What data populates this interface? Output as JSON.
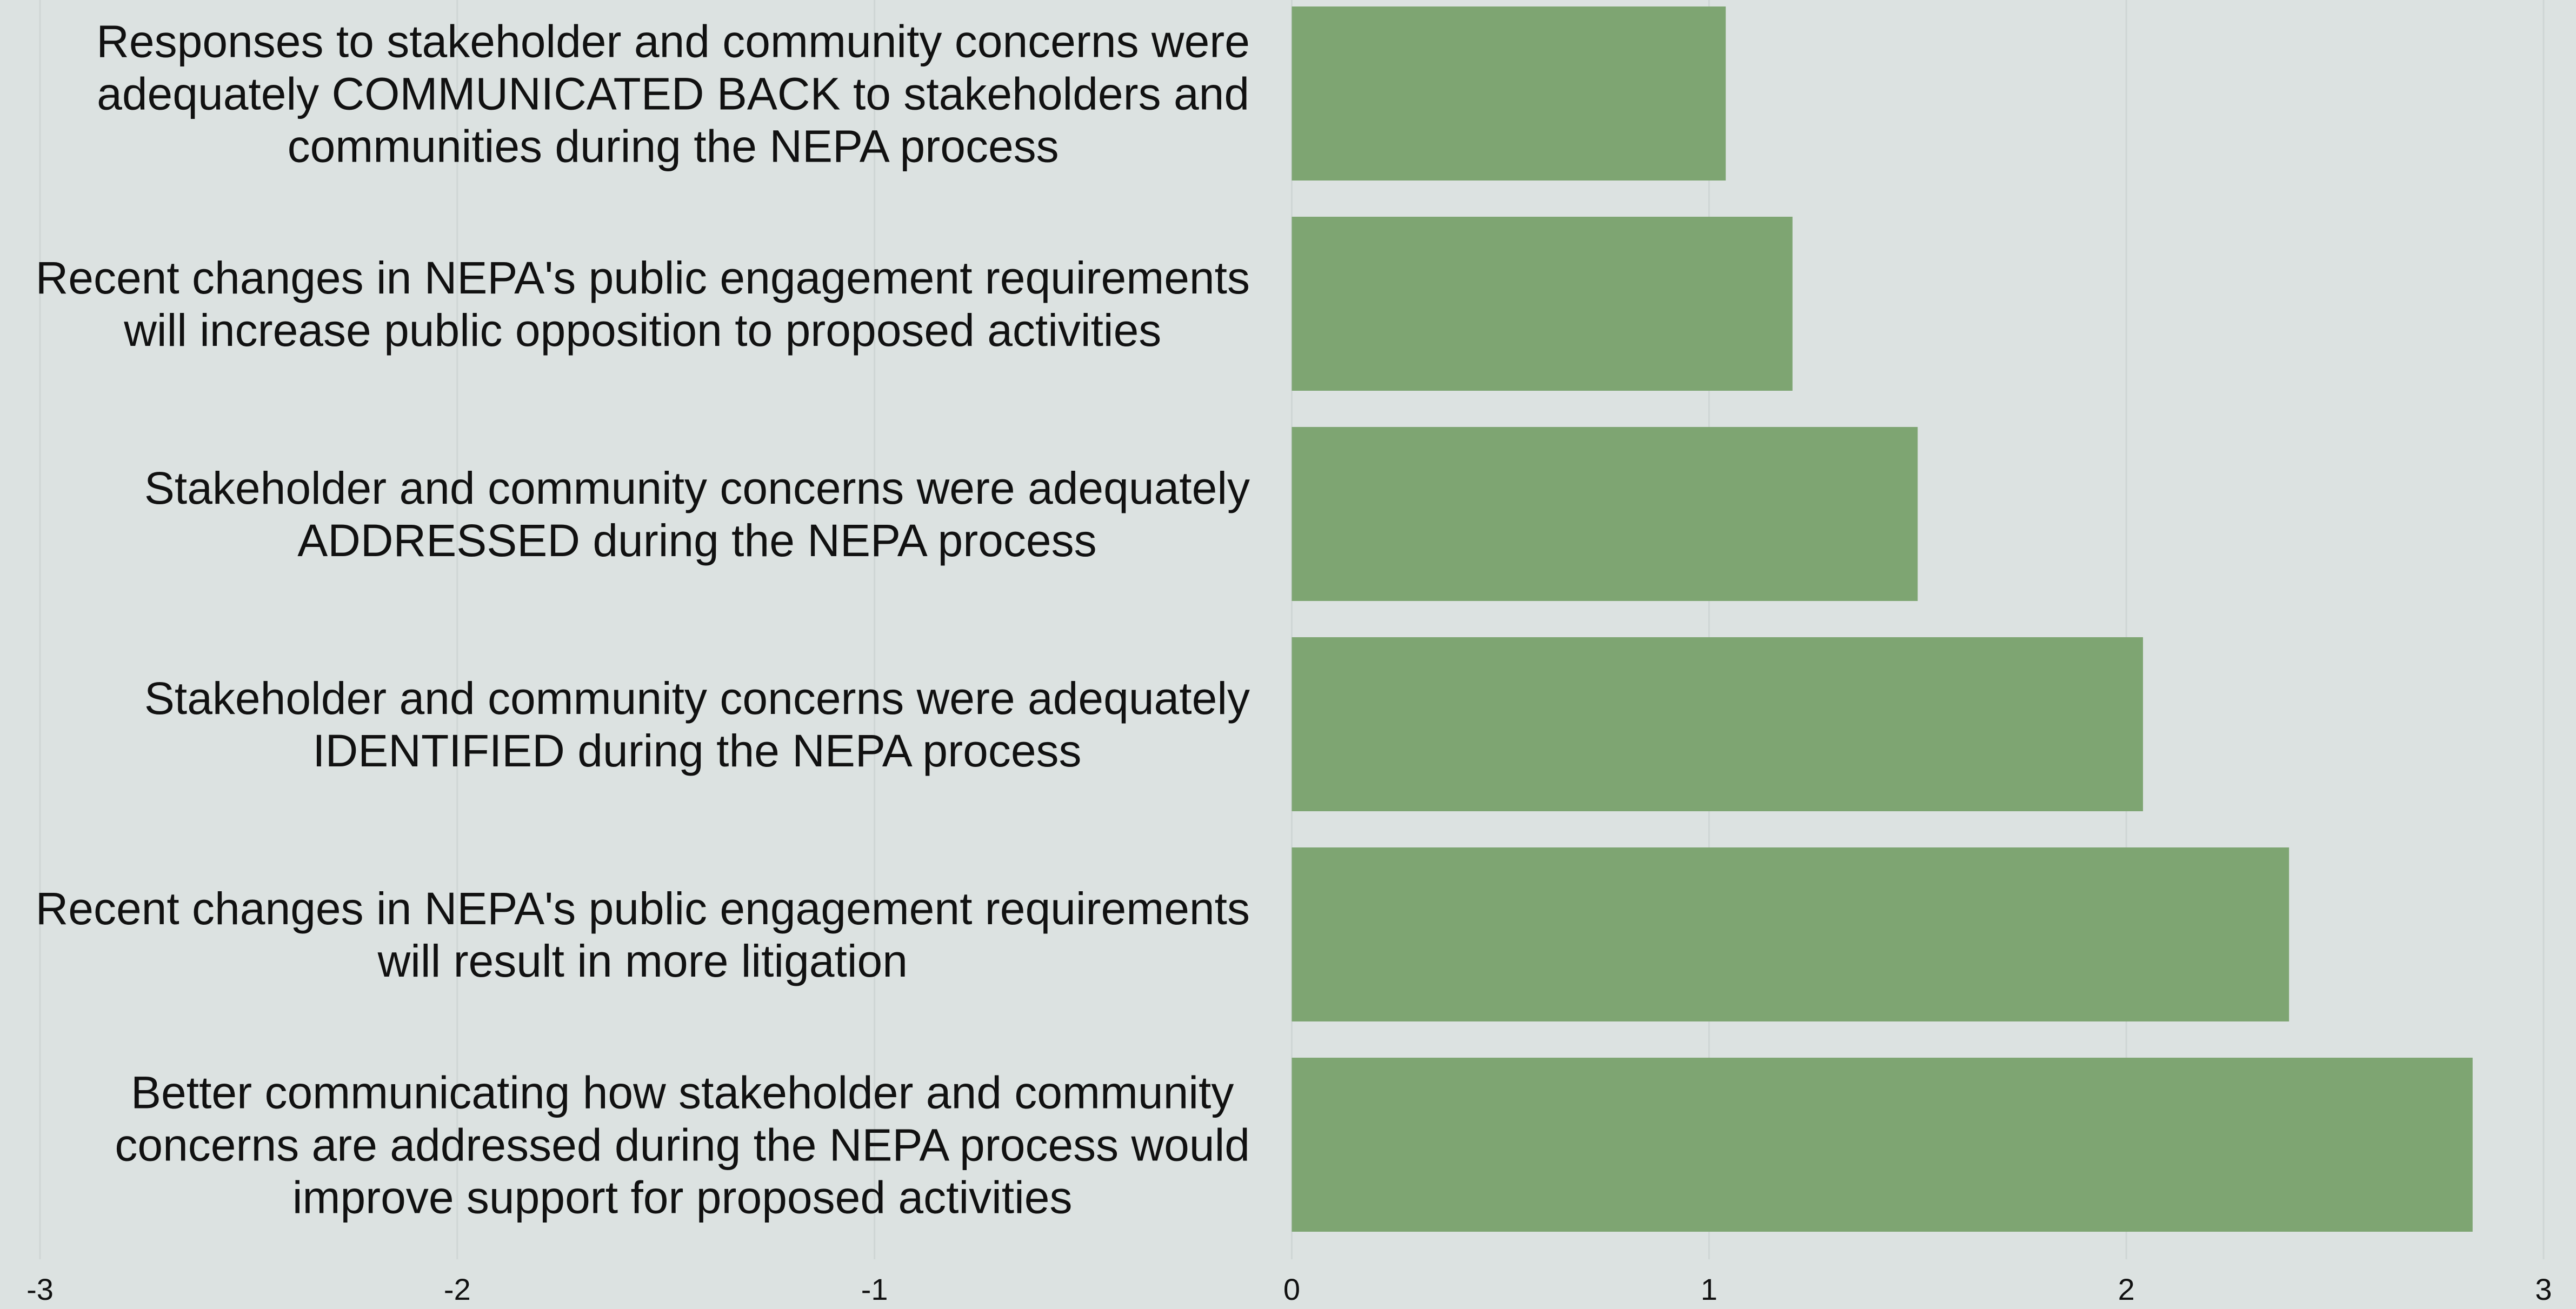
{
  "chart_data": {
    "type": "bar",
    "orientation": "horizontal",
    "categories": [
      "Responses to stakeholder and community concerns were adequately COMMUNICATED BACK to stakeholders and communities during the NEPA process",
      "Recent changes in NEPA's public engagement requirements will increase public opposition to proposed activities",
      "Stakeholder and community concerns were adequately ADDRESSED during the NEPA process",
      "Stakeholder and community concerns were adequately IDENTIFIED during the NEPA process",
      "Recent changes in NEPA's public engagement requirements will result in more litigation",
      "Better communicating how stakeholder and community concerns are addressed during the NEPA process would improve support for proposed activities"
    ],
    "category_lines": [
      [
        "Responses to stakeholder and community concerns were",
        "adequately COMMUNICATED BACK to stakeholders and",
        "communities during the NEPA process"
      ],
      [
        "Recent changes in NEPA's public engagement requirements",
        "will increase public opposition to proposed activities"
      ],
      [
        "Stakeholder and community concerns were adequately",
        "ADDRESSED during the NEPA process"
      ],
      [
        "Stakeholder and community concerns were adequately",
        "IDENTIFIED during the NEPA process"
      ],
      [
        "Recent changes in NEPA's public engagement requirements",
        "will result in more litigation"
      ],
      [
        "Better communicating how stakeholder and community",
        "concerns are addressed during the NEPA process would",
        "improve support for proposed activities"
      ]
    ],
    "values": [
      1.04,
      1.2,
      1.5,
      2.04,
      2.39,
      2.83
    ],
    "xlim": [
      -3,
      3
    ],
    "xticks": [
      "-3",
      "-2",
      "-1",
      "0",
      "1",
      "2",
      "3"
    ],
    "title": "",
    "xlabel": "",
    "ylabel": "",
    "grid": true,
    "legend": "none",
    "colors": {
      "background": "#dce2e1",
      "bar": "#7ea572",
      "gridline": "#cfd6d5",
      "text": "#111111"
    }
  }
}
